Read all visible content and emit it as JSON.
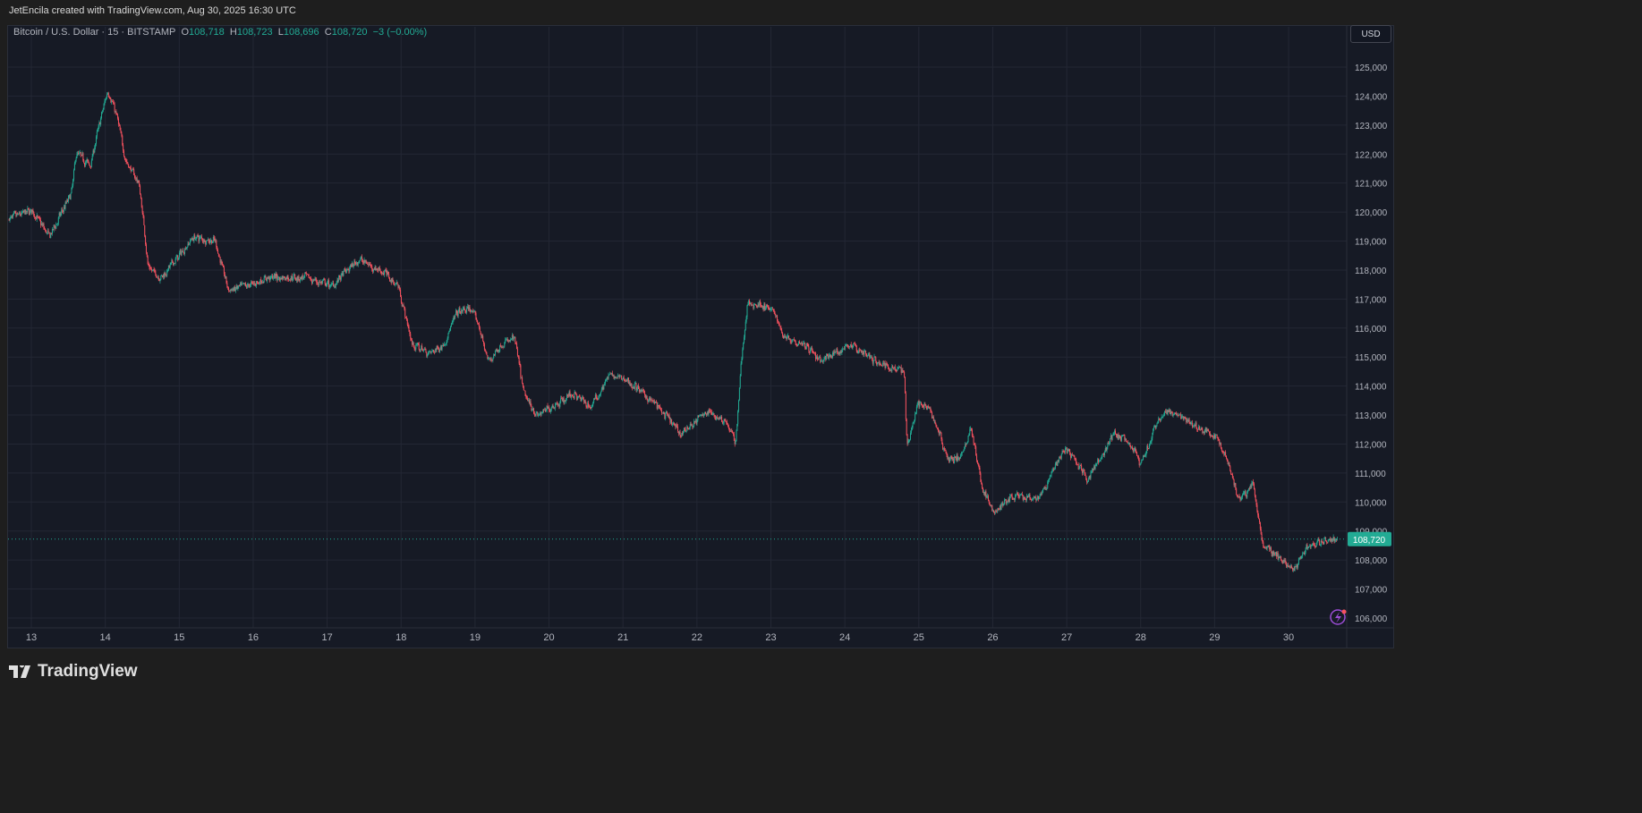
{
  "credit": "JetEncila created with TradingView.com, Aug 30, 2025 16:30 UTC",
  "legend": {
    "symbol": "Bitcoin / U.S. Dollar · 15 · BITSTAMP",
    "o_label": "O",
    "o": "108,718",
    "h_label": "H",
    "h": "108,723",
    "l_label": "L",
    "l": "108,696",
    "c_label": "C",
    "c": "108,720",
    "change": "−3 (−0.00%)"
  },
  "currency_button": "USD",
  "last_price_label": "108,720",
  "brand": "TradingView",
  "colors": {
    "up": "#22ab94",
    "down": "#f7525f",
    "background": "#161a25",
    "grid": "#232734",
    "last_price": "#22ab94"
  },
  "chart_data": {
    "type": "candlestick",
    "interval": "15",
    "x_unit": "day of August 2025",
    "xlim": [
      12.7,
      30.8
    ],
    "ylim": [
      105700,
      125900
    ],
    "y_ticks": [
      "106,000",
      "107,000",
      "108,000",
      "109,000",
      "110,000",
      "111,000",
      "112,000",
      "113,000",
      "114,000",
      "115,000",
      "116,000",
      "117,000",
      "118,000",
      "119,000",
      "120,000",
      "121,000",
      "122,000",
      "123,000",
      "124,000",
      "125,000"
    ],
    "x_ticks": [
      "13",
      "14",
      "15",
      "16",
      "17",
      "18",
      "19",
      "20",
      "21",
      "22",
      "23",
      "24",
      "25",
      "26",
      "27",
      "28",
      "29",
      "30"
    ],
    "grid": true,
    "last_price": 108720,
    "price_path": [
      [
        12.7,
        119760
      ],
      [
        13.0,
        120060
      ],
      [
        13.24,
        119140
      ],
      [
        13.54,
        120680
      ],
      [
        13.6,
        122070
      ],
      [
        13.79,
        121600
      ],
      [
        13.91,
        122990
      ],
      [
        14.03,
        124230
      ],
      [
        14.15,
        123300
      ],
      [
        14.27,
        121760
      ],
      [
        14.45,
        120990
      ],
      [
        14.54,
        119000
      ],
      [
        14.57,
        118060
      ],
      [
        14.75,
        117750
      ],
      [
        15.0,
        118520
      ],
      [
        15.18,
        119140
      ],
      [
        15.48,
        119000
      ],
      [
        15.66,
        117290
      ],
      [
        15.9,
        117440
      ],
      [
        16.21,
        117750
      ],
      [
        16.69,
        117750
      ],
      [
        17.05,
        117440
      ],
      [
        17.42,
        118370
      ],
      [
        17.78,
        117900
      ],
      [
        17.96,
        117440
      ],
      [
        18.14,
        115440
      ],
      [
        18.38,
        115130
      ],
      [
        18.57,
        115440
      ],
      [
        18.75,
        116520
      ],
      [
        18.93,
        116670
      ],
      [
        19.05,
        116050
      ],
      [
        19.17,
        114820
      ],
      [
        19.35,
        115440
      ],
      [
        19.53,
        115650
      ],
      [
        19.65,
        113740
      ],
      [
        19.84,
        112970
      ],
      [
        20.02,
        113280
      ],
      [
        20.32,
        113740
      ],
      [
        20.56,
        113280
      ],
      [
        20.8,
        114360
      ],
      [
        21.05,
        114200
      ],
      [
        21.41,
        113430
      ],
      [
        21.77,
        112350
      ],
      [
        22.13,
        113120
      ],
      [
        22.38,
        112810
      ],
      [
        22.52,
        112040
      ],
      [
        22.59,
        114820
      ],
      [
        22.68,
        116830
      ],
      [
        22.86,
        116830
      ],
      [
        23.04,
        116520
      ],
      [
        23.16,
        115750
      ],
      [
        23.47,
        115440
      ],
      [
        23.65,
        114820
      ],
      [
        24.07,
        115440
      ],
      [
        24.43,
        114820
      ],
      [
        24.8,
        114510
      ],
      [
        24.83,
        111890
      ],
      [
        24.98,
        113430
      ],
      [
        25.16,
        113120
      ],
      [
        25.4,
        111430
      ],
      [
        25.58,
        111570
      ],
      [
        25.7,
        112660
      ],
      [
        25.83,
        110660
      ],
      [
        26.01,
        109580
      ],
      [
        26.25,
        110190
      ],
      [
        26.61,
        110040
      ],
      [
        26.73,
        110660
      ],
      [
        26.97,
        111890
      ],
      [
        27.28,
        110810
      ],
      [
        27.64,
        112350
      ],
      [
        27.88,
        111890
      ],
      [
        28.0,
        111270
      ],
      [
        28.18,
        112500
      ],
      [
        28.31,
        113120
      ],
      [
        28.55,
        112970
      ],
      [
        28.79,
        112500
      ],
      [
        28.97,
        112350
      ],
      [
        29.15,
        111570
      ],
      [
        29.33,
        110040
      ],
      [
        29.52,
        110660
      ],
      [
        29.64,
        108500
      ],
      [
        29.88,
        108030
      ],
      [
        30.08,
        107720
      ],
      [
        30.24,
        108500
      ],
      [
        30.48,
        108650
      ],
      [
        30.66,
        108720
      ]
    ]
  }
}
